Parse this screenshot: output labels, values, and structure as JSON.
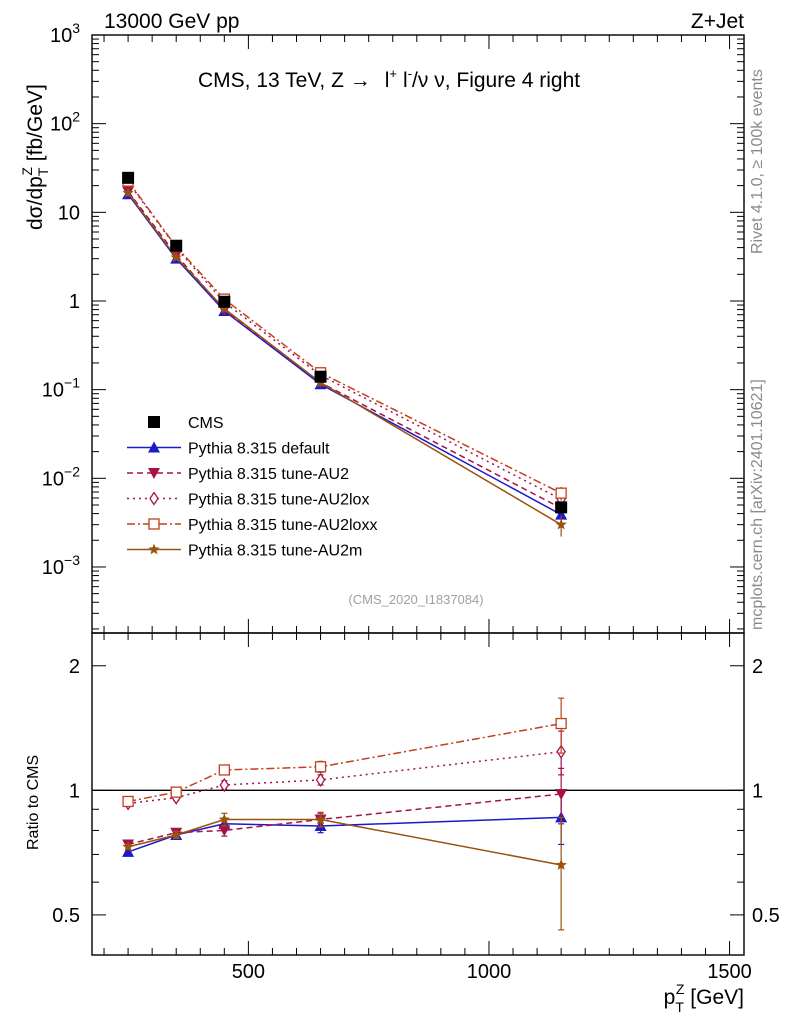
{
  "header": {
    "left": "13000 GeV pp",
    "right": "Z+Jet"
  },
  "side_labels": {
    "rivet": "Rivet 4.1.0, ≥ 100k events",
    "mcplots": "mcplots.cern.ch [arXiv:2401.10621]"
  },
  "colors": {
    "CMS": "#000000",
    "default": "#1a1acc",
    "AU2": "#a5124a",
    "AU2lox": "#a5124a",
    "AU2loxx": "#c0401a",
    "AU2m": "#9a5210"
  },
  "chart_data": [
    {
      "type": "line",
      "panel": "main",
      "title": "CMS, 13 TeV, Z → l+ l-/ν ν, Figure 4 right",
      "title_parts": {
        "prefix": "CMS, 13 TeV, Z →",
        "lp": "l",
        "lp_sup": "+",
        "lm": "l",
        "lm_sup": "-",
        "suffix": "/ν ν, Figure 4 right"
      },
      "watermark": "(CMS_2020_I1837084)",
      "ylabel": "dσ/dp_T^Z [fb/GeV]",
      "ylabel_parts": {
        "a": "dσ/dp",
        "sub": "T",
        "sup": "Z",
        "b": " [fb/GeV]"
      },
      "xlim": [
        175,
        1530
      ],
      "ylim": [
        0.00018,
        1000
      ],
      "yscale": "log",
      "y_tick_labels": [
        {
          "v": 1000,
          "base": "10",
          "exp": "3"
        },
        {
          "v": 100,
          "base": "10",
          "exp": "2"
        },
        {
          "v": 10,
          "base": "10",
          "exp": ""
        },
        {
          "v": 1,
          "base": "1",
          "exp": ""
        },
        {
          "v": 0.1,
          "base": "10",
          "exp": "−1"
        },
        {
          "v": 0.01,
          "base": "10",
          "exp": "−2"
        },
        {
          "v": 0.001,
          "base": "10",
          "exp": "−3"
        }
      ],
      "x": [
        250,
        350,
        450,
        650,
        1150
      ],
      "series": [
        {
          "name": "CMS",
          "key": "CMS",
          "values": [
            24.5,
            4.2,
            0.98,
            0.14,
            0.0047
          ],
          "marker": "square-filled",
          "line": "none"
        },
        {
          "name": "Pythia 8.315 default",
          "key": "default",
          "values": [
            16.0,
            3.0,
            0.77,
            0.115,
            0.0039
          ],
          "marker": "triangle-up",
          "line": "solid",
          "errors": [
            0,
            0,
            0,
            0,
            0.0006
          ]
        },
        {
          "name": "Pythia 8.315 tune-AU2",
          "key": "AU2",
          "values": [
            17.2,
            3.3,
            0.79,
            0.12,
            0.0046
          ],
          "marker": "triangle-down",
          "line": "dashed"
        },
        {
          "name": "Pythia 8.315 tune-AU2lox",
          "key": "AU2lox",
          "values": [
            22.0,
            4.0,
            0.97,
            0.145,
            0.0058
          ],
          "marker": "diamond-open",
          "line": "dotted"
        },
        {
          "name": "Pythia 8.315 tune-AU2loxx",
          "key": "AU2loxx",
          "values": [
            22.5,
            4.1,
            1.05,
            0.155,
            0.0068
          ],
          "marker": "square-open",
          "line": "dashdot",
          "errors": [
            0,
            0,
            0.08,
            0.01,
            0.0012
          ]
        },
        {
          "name": "Pythia 8.315 tune-AU2m",
          "key": "AU2m",
          "values": [
            16.5,
            3.1,
            0.82,
            0.12,
            0.003
          ],
          "marker": "star",
          "line": "solid",
          "errors": [
            0,
            0,
            0.06,
            0.01,
            0.0008
          ]
        }
      ]
    },
    {
      "type": "line",
      "panel": "ratio",
      "ylabel": "Ratio to CMS",
      "xlabel_parts": {
        "a": "p",
        "sub": "T",
        "sup": "Z",
        "b": " [GeV]"
      },
      "xlim": [
        175,
        1530
      ],
      "ylim": [
        0.4,
        2.4
      ],
      "yscale": "log",
      "y_tick_labels": [
        "2",
        "1",
        "0.5"
      ],
      "y_tick_values": [
        2,
        1,
        0.5
      ],
      "x_tick_labels": [
        "500",
        "1000",
        "1500"
      ],
      "x_tick_values": [
        500,
        1000,
        1500
      ],
      "x": [
        250,
        350,
        450,
        650,
        1150
      ],
      "series": [
        {
          "name": "Pythia 8.315 default",
          "key": "default",
          "values": [
            0.71,
            0.78,
            0.83,
            0.82,
            0.86
          ],
          "errors": [
            0.01,
            0.015,
            0.025,
            0.03,
            0.12
          ]
        },
        {
          "name": "Pythia 8.315 tune-AU2",
          "key": "AU2",
          "values": [
            0.74,
            0.79,
            0.8,
            0.85,
            0.98
          ],
          "errors": [
            0.01,
            0.015,
            0.025,
            0.03,
            0.15
          ]
        },
        {
          "name": "Pythia 8.315 tune-AU2lox",
          "key": "AU2lox",
          "values": [
            0.93,
            0.96,
            1.03,
            1.06,
            1.24
          ],
          "errors": [
            0.01,
            0.015,
            0.025,
            0.03,
            0.15
          ]
        },
        {
          "name": "Pythia 8.315 tune-AU2loxx",
          "key": "AU2loxx",
          "values": [
            0.94,
            0.99,
            1.12,
            1.14,
            1.45
          ],
          "errors": [
            0.01,
            0.015,
            0.03,
            0.035,
            0.22
          ]
        },
        {
          "name": "Pythia 8.315 tune-AU2m",
          "key": "AU2m",
          "values": [
            0.73,
            0.78,
            0.85,
            0.85,
            0.66
          ],
          "errors": [
            0.01,
            0.015,
            0.03,
            0.035,
            0.2
          ]
        }
      ]
    }
  ]
}
